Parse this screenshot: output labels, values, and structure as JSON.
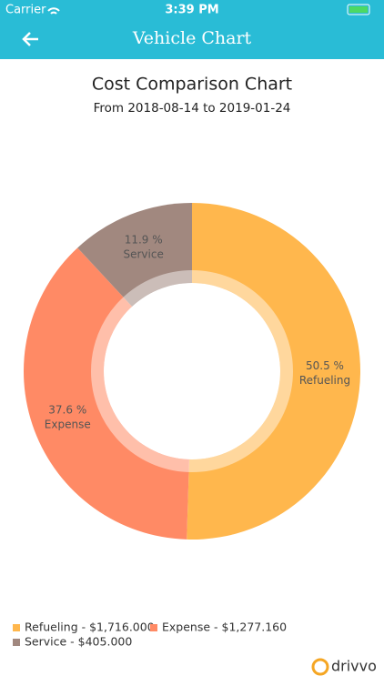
{
  "status_bar": {
    "carrier": "Carrier",
    "time": "3:39 PM"
  },
  "header": {
    "title": "Vehicle Chart"
  },
  "chart_data": {
    "type": "pie",
    "donut": true,
    "title": "Cost Comparison Chart",
    "subtitle": "From 2018-08-14 to 2019-01-24",
    "categories": [
      "Refueling",
      "Expense",
      "Service"
    ],
    "values": [
      50.5,
      37.6,
      11.9
    ],
    "value_labels": [
      "50.5 %",
      "37.6 %",
      "11.9 %"
    ],
    "colors": [
      "#ffb74d",
      "#ff8a65",
      "#a1887f"
    ],
    "legend_labels": [
      "Refueling - $1,716.000",
      "Expense - $1,277.160",
      "Service - $405.000"
    ],
    "legend": "bottom-left"
  },
  "footer": {
    "brand": "drivvo"
  }
}
